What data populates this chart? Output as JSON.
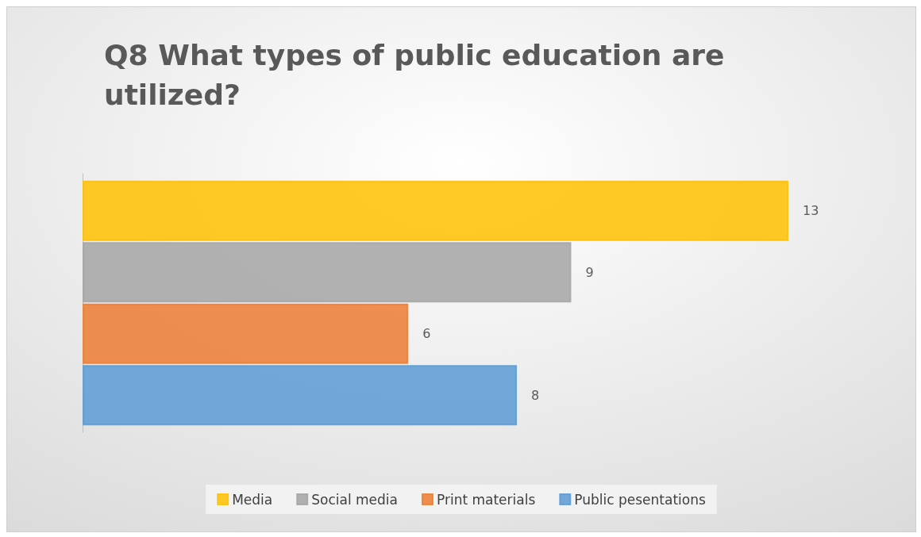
{
  "chart_data": {
    "type": "bar",
    "title": "Q8 What types of public education are utilized?",
    "orientation": "horizontal",
    "categories": [
      null
    ],
    "series": [
      {
        "name": "Media",
        "color": "#ffc000",
        "values": [
          13
        ]
      },
      {
        "name": "Social media",
        "color": "#a5a5a5",
        "values": [
          9
        ]
      },
      {
        "name": "Print materials",
        "color": "#ed7d31",
        "values": [
          6
        ]
      },
      {
        "name": "Public pesentations",
        "color": "#5b9bd5",
        "values": [
          8
        ]
      }
    ],
    "data_labels": true,
    "legend": "bottom",
    "grid": false
  }
}
